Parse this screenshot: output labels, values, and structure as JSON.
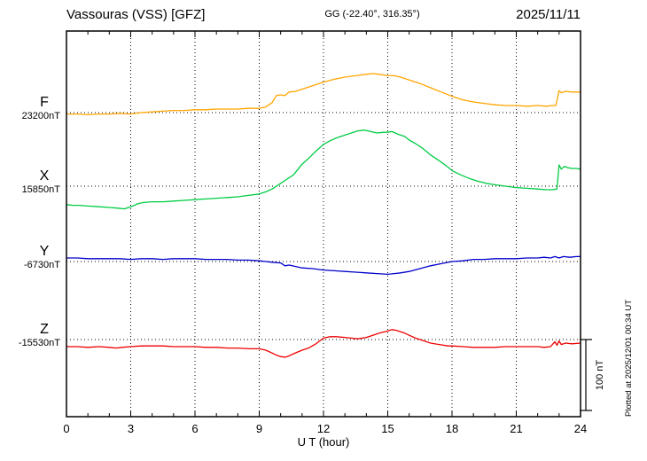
{
  "header": {
    "station": "Vassouras (VSS)  [GFZ]",
    "coords": "GG (-22.40°, 316.35°)",
    "date": "2025/11/11"
  },
  "footer_note": "Plotted at 2025/12/01 00:34 UT",
  "chart_data": {
    "type": "line",
    "xlabel": "U T (hour)",
    "x_range": [
      0,
      24
    ],
    "x_ticks": [
      0,
      3,
      6,
      9,
      12,
      15,
      18,
      21,
      24
    ],
    "grid": {
      "x_interval_hours": 3,
      "style": "dotted"
    },
    "scale_bar": {
      "label": "100 nT",
      "nT": 100
    },
    "points_unit": "nT offset from component baseline",
    "series": [
      {
        "name": "F",
        "baseline_label": "23200nT",
        "color": "#FFA500",
        "points": [
          [
            0,
            -2
          ],
          [
            0.5,
            -2
          ],
          [
            1,
            -3
          ],
          [
            1.5,
            -2
          ],
          [
            2,
            -2
          ],
          [
            2.5,
            -1
          ],
          [
            3,
            -2
          ],
          [
            3.5,
            0
          ],
          [
            4,
            1
          ],
          [
            4.5,
            2
          ],
          [
            5,
            3
          ],
          [
            5.5,
            3
          ],
          [
            6,
            4
          ],
          [
            6.5,
            4
          ],
          [
            7,
            5
          ],
          [
            7.5,
            5
          ],
          [
            8,
            5
          ],
          [
            8.5,
            6
          ],
          [
            9,
            6
          ],
          [
            9.3,
            8
          ],
          [
            9.6,
            14
          ],
          [
            9.8,
            24
          ],
          [
            10,
            25
          ],
          [
            10.2,
            24
          ],
          [
            10.4,
            29
          ],
          [
            10.7,
            30
          ],
          [
            11,
            33
          ],
          [
            11.5,
            38
          ],
          [
            12,
            43
          ],
          [
            12.5,
            47
          ],
          [
            13,
            50
          ],
          [
            13.5,
            52
          ],
          [
            14,
            54
          ],
          [
            14.3,
            55
          ],
          [
            14.6,
            54
          ],
          [
            15,
            52
          ],
          [
            15.3,
            52
          ],
          [
            15.6,
            50
          ],
          [
            16,
            46
          ],
          [
            16.5,
            41
          ],
          [
            17,
            35
          ],
          [
            17.5,
            29
          ],
          [
            18,
            23
          ],
          [
            18.5,
            18
          ],
          [
            19,
            15
          ],
          [
            19.5,
            13
          ],
          [
            20,
            11
          ],
          [
            20.5,
            10
          ],
          [
            21,
            10
          ],
          [
            21.5,
            9
          ],
          [
            22,
            10
          ],
          [
            22.4,
            9
          ],
          [
            22.7,
            10
          ],
          [
            22.85,
            10
          ],
          [
            23,
            31
          ],
          [
            23.1,
            28
          ],
          [
            23.3,
            30
          ],
          [
            23.6,
            29
          ],
          [
            24,
            29
          ]
        ]
      },
      {
        "name": "X",
        "baseline_label": "15850nT",
        "color": "#00CC44",
        "points": [
          [
            0,
            -26
          ],
          [
            0.3,
            -27
          ],
          [
            0.6,
            -27
          ],
          [
            1,
            -28
          ],
          [
            1.5,
            -29
          ],
          [
            2,
            -30
          ],
          [
            2.4,
            -31
          ],
          [
            2.7,
            -32
          ],
          [
            2.9,
            -30
          ],
          [
            3.1,
            -28
          ],
          [
            3.3,
            -25
          ],
          [
            3.6,
            -23
          ],
          [
            4,
            -22
          ],
          [
            4.5,
            -22
          ],
          [
            5,
            -21
          ],
          [
            5.5,
            -20
          ],
          [
            6,
            -19
          ],
          [
            6.5,
            -18
          ],
          [
            7,
            -17
          ],
          [
            7.5,
            -16
          ],
          [
            8,
            -15
          ],
          [
            8.5,
            -13
          ],
          [
            9,
            -11
          ],
          [
            9.3,
            -8
          ],
          [
            9.6,
            -4
          ],
          [
            10,
            4
          ],
          [
            10.3,
            10
          ],
          [
            10.6,
            16
          ],
          [
            11,
            31
          ],
          [
            11.3,
            39
          ],
          [
            11.6,
            48
          ],
          [
            12,
            59
          ],
          [
            12.3,
            64
          ],
          [
            12.6,
            68
          ],
          [
            13,
            72
          ],
          [
            13.3,
            75
          ],
          [
            13.6,
            78
          ],
          [
            13.9,
            79
          ],
          [
            14.2,
            77
          ],
          [
            14.5,
            75
          ],
          [
            14.8,
            76
          ],
          [
            15,
            76
          ],
          [
            15.2,
            77
          ],
          [
            15.5,
            73
          ],
          [
            15.8,
            70
          ],
          [
            16,
            65
          ],
          [
            16.3,
            60
          ],
          [
            16.6,
            54
          ],
          [
            17,
            44
          ],
          [
            17.4,
            36
          ],
          [
            17.8,
            27
          ],
          [
            18,
            22
          ],
          [
            18.4,
            16
          ],
          [
            18.8,
            11
          ],
          [
            19.2,
            7
          ],
          [
            19.6,
            4
          ],
          [
            20,
            2
          ],
          [
            20.5,
            0
          ],
          [
            21,
            -2
          ],
          [
            21.5,
            -3
          ],
          [
            22,
            -4
          ],
          [
            22.4,
            -5
          ],
          [
            22.7,
            -5
          ],
          [
            22.9,
            -4
          ],
          [
            23,
            30
          ],
          [
            23.1,
            24
          ],
          [
            23.25,
            28
          ],
          [
            23.4,
            26
          ],
          [
            23.6,
            25
          ],
          [
            23.8,
            25
          ],
          [
            24,
            24
          ]
        ]
      },
      {
        "name": "Y",
        "baseline_label": "-6730nT",
        "color": "#0000CC",
        "points": [
          [
            0,
            5
          ],
          [
            0.5,
            5
          ],
          [
            1,
            4
          ],
          [
            1.5,
            4
          ],
          [
            2,
            4
          ],
          [
            2.5,
            4
          ],
          [
            3,
            3
          ],
          [
            3.5,
            4
          ],
          [
            4,
            4
          ],
          [
            4.5,
            3
          ],
          [
            5,
            4
          ],
          [
            5.5,
            4
          ],
          [
            6,
            4
          ],
          [
            6.5,
            3
          ],
          [
            7,
            3
          ],
          [
            7.5,
            3
          ],
          [
            8,
            2
          ],
          [
            8.5,
            2
          ],
          [
            9,
            1
          ],
          [
            9.3,
            0
          ],
          [
            9.6,
            -1
          ],
          [
            10,
            -2
          ],
          [
            10.2,
            -6
          ],
          [
            10.4,
            -5
          ],
          [
            10.7,
            -7
          ],
          [
            11,
            -9
          ],
          [
            11.5,
            -10
          ],
          [
            12,
            -12
          ],
          [
            12.5,
            -13
          ],
          [
            13,
            -14
          ],
          [
            13.5,
            -15
          ],
          [
            14,
            -16
          ],
          [
            14.5,
            -17
          ],
          [
            15,
            -18
          ],
          [
            15.3,
            -17
          ],
          [
            15.6,
            -16
          ],
          [
            16,
            -14
          ],
          [
            16.5,
            -10
          ],
          [
            17,
            -6
          ],
          [
            17.5,
            -3
          ],
          [
            18,
            0
          ],
          [
            18.5,
            1
          ],
          [
            19,
            3
          ],
          [
            19.5,
            3
          ],
          [
            20,
            4
          ],
          [
            20.5,
            4
          ],
          [
            21,
            4
          ],
          [
            21.5,
            5
          ],
          [
            22,
            5
          ],
          [
            22.3,
            6
          ],
          [
            22.6,
            5
          ],
          [
            22.8,
            7
          ],
          [
            23,
            5
          ],
          [
            23.2,
            7
          ],
          [
            23.5,
            6
          ],
          [
            23.8,
            7
          ],
          [
            24,
            7
          ]
        ]
      },
      {
        "name": "Z",
        "baseline_label": "-15530nT",
        "color": "#EE0000",
        "points": [
          [
            0,
            -10
          ],
          [
            0.5,
            -10
          ],
          [
            1,
            -11
          ],
          [
            1.5,
            -10
          ],
          [
            2,
            -11
          ],
          [
            2.3,
            -12
          ],
          [
            2.6,
            -11
          ],
          [
            3,
            -10
          ],
          [
            3.5,
            -9
          ],
          [
            4,
            -9
          ],
          [
            4.5,
            -9
          ],
          [
            5,
            -10
          ],
          [
            5.5,
            -10
          ],
          [
            6,
            -10
          ],
          [
            6.5,
            -11
          ],
          [
            7,
            -11
          ],
          [
            7.5,
            -12
          ],
          [
            8,
            -12
          ],
          [
            8.5,
            -13
          ],
          [
            9,
            -13
          ],
          [
            9.3,
            -15
          ],
          [
            9.6,
            -19
          ],
          [
            9.8,
            -22
          ],
          [
            10,
            -24
          ],
          [
            10.2,
            -25
          ],
          [
            10.4,
            -23
          ],
          [
            10.6,
            -20
          ],
          [
            11,
            -15
          ],
          [
            11.3,
            -12
          ],
          [
            11.6,
            -7
          ],
          [
            12,
            2
          ],
          [
            12.3,
            4
          ],
          [
            12.6,
            4
          ],
          [
            13,
            3
          ],
          [
            13.3,
            2
          ],
          [
            13.6,
            1
          ],
          [
            14,
            3
          ],
          [
            14.3,
            6
          ],
          [
            14.6,
            9
          ],
          [
            15,
            12
          ],
          [
            15.2,
            14
          ],
          [
            15.4,
            13
          ],
          [
            15.6,
            11
          ],
          [
            15.8,
            9
          ],
          [
            16,
            6
          ],
          [
            16.3,
            2
          ],
          [
            16.6,
            -1
          ],
          [
            17,
            -5
          ],
          [
            17.4,
            -7
          ],
          [
            17.8,
            -9
          ],
          [
            18,
            -9
          ],
          [
            18.5,
            -10
          ],
          [
            19,
            -11
          ],
          [
            19.5,
            -11
          ],
          [
            20,
            -11
          ],
          [
            20.5,
            -10
          ],
          [
            21,
            -10
          ],
          [
            21.5,
            -10
          ],
          [
            22,
            -10
          ],
          [
            22.3,
            -11
          ],
          [
            22.6,
            -10
          ],
          [
            22.8,
            -3
          ],
          [
            22.9,
            -8
          ],
          [
            23,
            -2
          ],
          [
            23.1,
            -7
          ],
          [
            23.3,
            -5
          ],
          [
            23.6,
            -6
          ],
          [
            24,
            -5
          ]
        ]
      }
    ]
  }
}
